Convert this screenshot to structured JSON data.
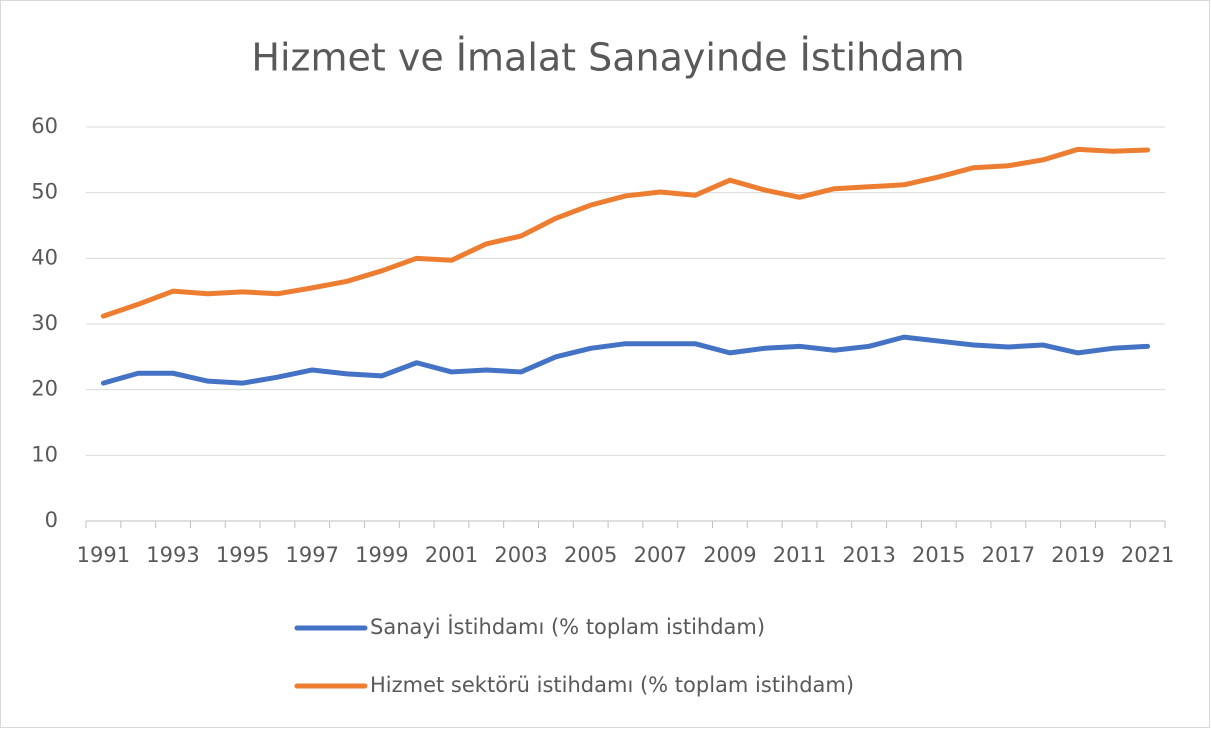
{
  "chart_data": {
    "type": "line",
    "title": "Hizmet ve İmalat Sanayinde İstihdam",
    "categories": [
      "1991",
      null,
      "1993",
      null,
      "1995",
      null,
      "1997",
      null,
      "1999",
      null,
      "2001",
      null,
      "2003",
      null,
      "2005",
      null,
      "2007",
      null,
      "2009",
      null,
      "2011",
      null,
      "2013",
      null,
      "2015",
      null,
      "2017",
      null,
      "2019",
      null,
      "2021"
    ],
    "series": [
      {
        "name": "Sanayi İstihdamı (% toplam istihdam)",
        "color": "#4472c4",
        "values": [
          21.0,
          22.5,
          22.5,
          21.3,
          21.0,
          21.9,
          23.0,
          22.4,
          22.1,
          24.1,
          22.7,
          23.0,
          22.7,
          25.0,
          26.3,
          27.0,
          27.0,
          27.0,
          25.6,
          26.3,
          26.6,
          26.0,
          26.6,
          28.0,
          27.4,
          26.8,
          26.5,
          26.8,
          25.6,
          26.3,
          26.6
        ]
      },
      {
        "name": "Hizmet sektörü istihdamı (% toplam istihdam)",
        "color": "#ed7d31",
        "values": [
          31.2,
          33.0,
          35.0,
          34.6,
          34.9,
          34.6,
          35.5,
          36.5,
          38.1,
          40.0,
          39.7,
          42.2,
          43.4,
          46.1,
          48.1,
          49.5,
          50.1,
          49.6,
          51.9,
          50.4,
          49.3,
          50.6,
          50.9,
          51.2,
          52.4,
          53.8,
          54.1,
          55.0,
          56.6,
          56.3,
          56.5
        ]
      }
    ],
    "ylim": [
      0,
      60
    ],
    "yticks": [
      0,
      10,
      20,
      30,
      40,
      50,
      60
    ],
    "grid": true,
    "legend": "bottom"
  }
}
